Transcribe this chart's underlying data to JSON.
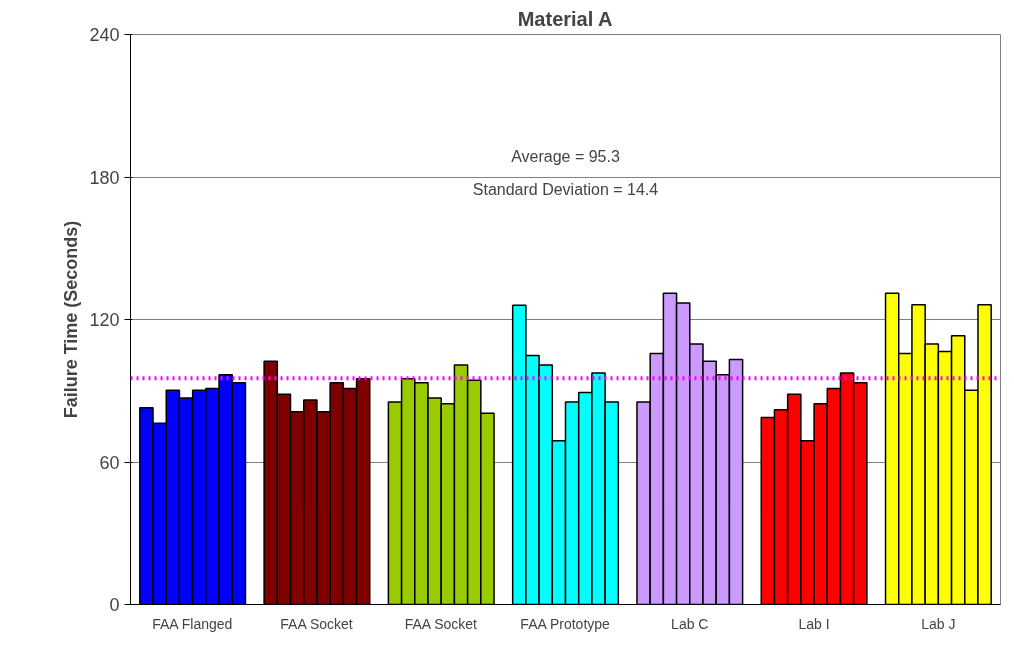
{
  "chart_data": {
    "type": "bar",
    "title": "Material A",
    "ylabel": "Failure Time (Seconds)",
    "categories": [
      "FAA Flanged",
      "FAA Socket",
      "FAA Socket",
      "FAA Prototype",
      "Lab C",
      "Lab I",
      "Lab J"
    ],
    "series": [
      {
        "colors": [
          "#0000ff",
          "#800000",
          "#99cc00",
          "#00ffff",
          "#cc99ff",
          "#ff0000",
          "#ffff00"
        ],
        "values": [
          82.8,
          102.4,
          85.3,
          126.0,
          85.3,
          78.7,
          131.1
        ]
      },
      {
        "colors": [
          "#0000ff",
          "#800000",
          "#99cc00",
          "#00ffff",
          "#cc99ff",
          "#ff0000",
          "#ffff00"
        ],
        "values": [
          76.3,
          88.5,
          95.1,
          104.8,
          105.7,
          82.0,
          105.7
        ]
      },
      {
        "colors": [
          "#0000ff",
          "#800000",
          "#99cc00",
          "#00ffff",
          "#cc99ff",
          "#ff0000",
          "#ffff00"
        ],
        "values": [
          90.2,
          81.2,
          93.4,
          100.8,
          131.1,
          88.5,
          126.2
        ]
      },
      {
        "colors": [
          "#0000ff",
          "#800000",
          "#99cc00",
          "#00ffff",
          "#cc99ff",
          "#ff0000",
          "#ffff00"
        ],
        "values": [
          86.9,
          86.1,
          86.9,
          69.0,
          127.0,
          69.0,
          109.7
        ]
      },
      {
        "colors": [
          "#0000ff",
          "#800000",
          "#99cc00",
          "#00ffff",
          "#cc99ff",
          "#ff0000",
          "#ffff00"
        ],
        "values": [
          90.2,
          81.2,
          84.5,
          85.3,
          109.7,
          84.5,
          106.5
        ]
      },
      {
        "colors": [
          "#0000ff",
          "#800000",
          "#99cc00",
          "#00ffff",
          "#cc99ff",
          "#ff0000",
          "#ffff00"
        ],
        "values": [
          91.0,
          93.4,
          100.8,
          89.3,
          102.4,
          91.0,
          113.2
        ]
      },
      {
        "colors": [
          "#0000ff",
          "#800000",
          "#99cc00",
          "#00ffff",
          "#cc99ff",
          "#ff0000",
          "#ffff00"
        ],
        "values": [
          96.7,
          91.0,
          94.4,
          97.5,
          96.7,
          97.5,
          90.2
        ]
      },
      {
        "colors": [
          "#0000ff",
          "#800000",
          "#99cc00",
          "#00ffff",
          "#cc99ff",
          "#ff0000",
          "#ffff00"
        ],
        "values": [
          93.4,
          95.1,
          80.5,
          85.3,
          103.2,
          93.4,
          126.2
        ]
      }
    ],
    "ylim": [
      0,
      240
    ],
    "yticks": [
      0,
      60,
      120,
      180,
      240
    ],
    "grid": "y",
    "ref_lines": [
      {
        "axis": "y",
        "value": 95.3,
        "color": "#ff00ff",
        "line_style": "dotted"
      }
    ],
    "annotations": [
      "Average = 95.3",
      "Standard Deviation = 14.4"
    ]
  }
}
